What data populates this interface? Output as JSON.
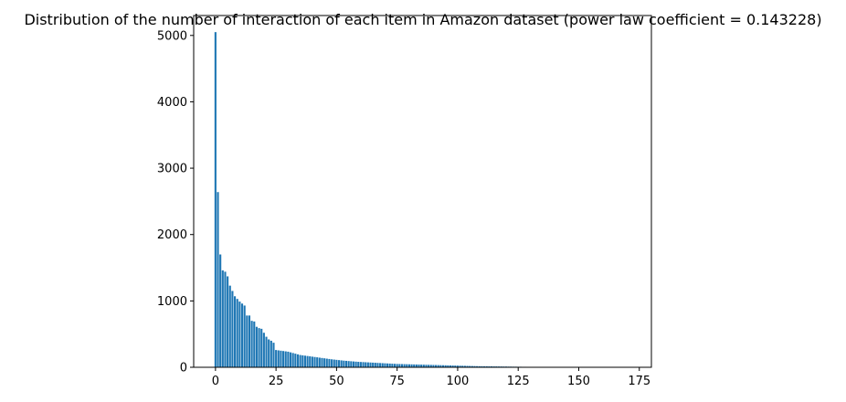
{
  "chart_data": {
    "type": "bar",
    "title": "Distribution of the number of interaction of each item in Amazon dataset (power law coefficient = 0.143228)",
    "xlabel": "",
    "ylabel": "",
    "xlim": [
      -9,
      180
    ],
    "ylim": [
      0,
      5300
    ],
    "xticks": [
      0,
      25,
      50,
      75,
      100,
      125,
      150,
      175
    ],
    "yticks": [
      0,
      1000,
      2000,
      3000,
      4000,
      5000
    ],
    "grid": false,
    "bar_color": "#1f77b4",
    "x": [
      0,
      1,
      2,
      3,
      4,
      5,
      6,
      7,
      8,
      9,
      10,
      11,
      12,
      13,
      14,
      15,
      16,
      17,
      18,
      19,
      20,
      21,
      22,
      23,
      24,
      25,
      26,
      27,
      28,
      29,
      30,
      31,
      32,
      33,
      34,
      35,
      36,
      37,
      38,
      39,
      40,
      41,
      42,
      43,
      44,
      45,
      46,
      47,
      48,
      49,
      50,
      51,
      52,
      53,
      54,
      55,
      56,
      57,
      58,
      59,
      60,
      61,
      62,
      63,
      64,
      65,
      66,
      67,
      68,
      69,
      70,
      71,
      72,
      73,
      74,
      75,
      76,
      77,
      78,
      79,
      80,
      81,
      82,
      83,
      84,
      85,
      86,
      87,
      88,
      89,
      90,
      91,
      92,
      93,
      94,
      95,
      96,
      97,
      98,
      99,
      100,
      101,
      102,
      103,
      104,
      105,
      106,
      107,
      108,
      109,
      110,
      111,
      112,
      113,
      114,
      115,
      116,
      117,
      118,
      119,
      120,
      121,
      122,
      123,
      124,
      125,
      126,
      127,
      128,
      129,
      130,
      131,
      132,
      133,
      134,
      135,
      136,
      137,
      138,
      139,
      140,
      141,
      142,
      143,
      144,
      145,
      146,
      147,
      148,
      149,
      150,
      151,
      152,
      153,
      154,
      155,
      156,
      157,
      158,
      159,
      160,
      161,
      162,
      163,
      164,
      165,
      166,
      167,
      168,
      169,
      170,
      171,
      172
    ],
    "values": [
      5050,
      2640,
      1700,
      1460,
      1440,
      1370,
      1230,
      1150,
      1070,
      1030,
      990,
      960,
      930,
      780,
      780,
      700,
      690,
      610,
      590,
      580,
      520,
      460,
      420,
      400,
      370,
      260,
      255,
      250,
      245,
      240,
      235,
      225,
      215,
      205,
      195,
      185,
      180,
      175,
      170,
      165,
      160,
      155,
      150,
      145,
      140,
      135,
      130,
      125,
      120,
      116,
      112,
      108,
      104,
      100,
      97,
      94,
      91,
      88,
      85,
      82,
      80,
      78,
      76,
      74,
      72,
      70,
      68,
      66,
      64,
      62,
      60,
      58,
      56,
      54,
      52,
      50,
      49,
      48,
      47,
      46,
      45,
      44,
      43,
      42,
      41,
      40,
      39,
      38,
      37,
      36,
      35,
      34,
      33,
      32,
      31,
      30,
      29,
      28,
      27,
      26,
      25,
      24,
      23,
      22,
      21,
      20,
      19,
      18,
      17,
      16,
      16,
      15,
      15,
      14,
      14,
      13,
      13,
      12,
      12,
      11,
      11,
      10,
      10,
      9,
      9,
      8,
      8,
      7,
      7,
      6,
      6,
      6,
      5,
      5,
      5,
      4,
      4,
      4,
      4,
      3,
      3,
      3,
      3,
      3,
      2,
      2,
      2,
      2,
      2,
      2,
      2,
      1,
      1,
      1,
      1,
      1,
      1,
      1,
      1,
      1,
      1,
      1,
      1,
      1,
      1,
      1,
      1,
      1,
      1,
      1,
      1,
      1,
      1
    ]
  }
}
